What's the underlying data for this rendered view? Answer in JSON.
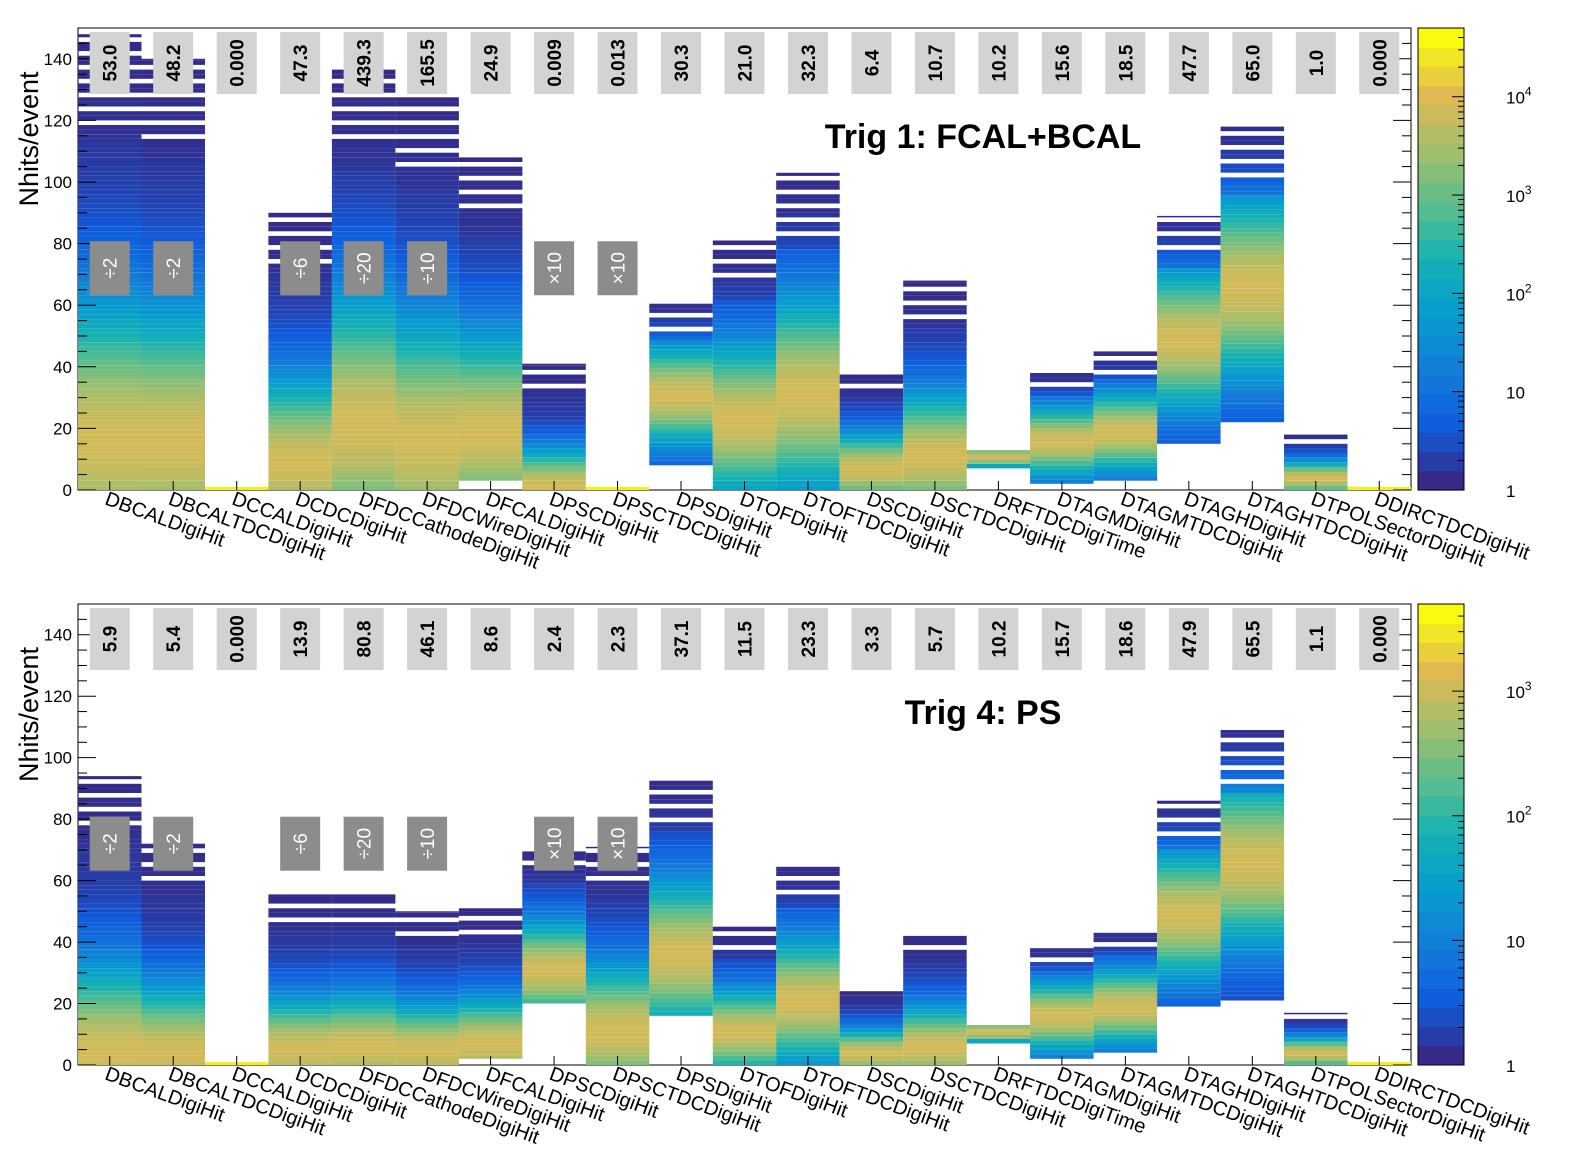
{
  "chart_data": [
    {
      "type": "heatmap",
      "title": "Trig 1: FCAL+BCAL",
      "ylabel": "Nhits/event",
      "ylim": [
        0,
        150
      ],
      "yticks": [
        0,
        20,
        40,
        60,
        80,
        100,
        120,
        140
      ],
      "colorbar": {
        "scale": "log",
        "range": [
          1,
          50000
        ],
        "tick_labels": [
          "1",
          "10",
          "10^2",
          "10^3",
          "10^4"
        ]
      },
      "categories": [
        "DBCALDigiHit",
        "DBCALTDCDigiHit",
        "DCCALDigiHit",
        "DCDCDigiHit",
        "DFDCCathodeDigiHit",
        "DFDCWireDigiHit",
        "DFCALDigiHit",
        "DPSCDigiHit",
        "DPSCTDCDigiHit",
        "DPSDigiHit",
        "DTOFDigiHit",
        "DTOFTDCDigiHit",
        "DSCDigiHit",
        "DSCTDCDigiHit",
        "DRFTDCDigiTime",
        "DTAGMDigiHit",
        "DTAGMTDCDigiHit",
        "DTAGHDigiHit",
        "DTAGHTDCDigiHit",
        "DTPOLSectorDigiHit",
        "DDIRCTDCDigiHit"
      ],
      "mean_labels": [
        "53.0",
        "48.2",
        "0.000",
        "47.3",
        "439.3",
        "165.5",
        "24.9",
        "0.009",
        "0.013",
        "30.3",
        "21.0",
        "32.3",
        "6.4",
        "10.7",
        "10.2",
        "15.6",
        "18.5",
        "47.7",
        "65.0",
        "1.0",
        "0.000"
      ],
      "scale_labels": [
        "÷2",
        "÷2",
        "",
        "÷6",
        "÷20",
        "÷10",
        "",
        "×10",
        "×10",
        "",
        "",
        "",
        "",
        "",
        "",
        "",
        "",
        "",
        "",
        "",
        ""
      ],
      "column_extents": [
        {
          "min": 0,
          "max": 148,
          "peak": 15
        },
        {
          "min": 0,
          "max": 140,
          "peak": 15
        },
        {
          "min": 0,
          "max": 1,
          "peak": 0
        },
        {
          "min": 0,
          "max": 90,
          "peak": 8
        },
        {
          "min": 0,
          "max": 137,
          "peak": 20
        },
        {
          "min": 0,
          "max": 129,
          "peak": 15
        },
        {
          "min": 3,
          "max": 108,
          "peak": 18
        },
        {
          "min": 0,
          "max": 41,
          "peak": 0
        },
        {
          "min": 0,
          "max": 1,
          "peak": 0
        },
        {
          "min": 8,
          "max": 61,
          "peak": 30
        },
        {
          "min": 0,
          "max": 81,
          "peak": 22
        },
        {
          "min": 0,
          "max": 103,
          "peak": 30
        },
        {
          "min": 0,
          "max": 38,
          "peak": 6
        },
        {
          "min": 0,
          "max": 68,
          "peak": 10
        },
        {
          "min": 7,
          "max": 13,
          "peak": 10
        },
        {
          "min": 2,
          "max": 39,
          "peak": 15
        },
        {
          "min": 3,
          "max": 45,
          "peak": 18
        },
        {
          "min": 15,
          "max": 89,
          "peak": 48
        },
        {
          "min": 22,
          "max": 118,
          "peak": 65
        },
        {
          "min": 0,
          "max": 18,
          "peak": 3
        },
        {
          "min": 0,
          "max": 1,
          "peak": 0
        }
      ]
    },
    {
      "type": "heatmap",
      "title": "Trig 4: PS",
      "ylabel": "Nhits/event",
      "ylim": [
        0,
        150
      ],
      "yticks": [
        0,
        20,
        40,
        60,
        80,
        100,
        120,
        140
      ],
      "colorbar": {
        "scale": "log",
        "range": [
          1,
          5000
        ],
        "tick_labels": [
          "1",
          "10",
          "10^2",
          "10^3"
        ]
      },
      "categories": [
        "DBCALDigiHit",
        "DBCALTDCDigiHit",
        "DCCALDigiHit",
        "DCDCDigiHit",
        "DFDCCathodeDigiHit",
        "DFDCWireDigiHit",
        "DFCALDigiHit",
        "DPSCDigiHit",
        "DPSCTDCDigiHit",
        "DPSDigiHit",
        "DTOFDigiHit",
        "DTOFTDCDigiHit",
        "DSCDigiHit",
        "DSCTDCDigiHit",
        "DRFTDCDigiTime",
        "DTAGMDigiHit",
        "DTAGMTDCDigiHit",
        "DTAGHDigiHit",
        "DTAGHTDCDigiHit",
        "DTPOLSectorDigiHit",
        "DDIRCTDCDigiHit"
      ],
      "mean_labels": [
        "5.9",
        "5.4",
        "0.000",
        "13.9",
        "80.8",
        "46.1",
        "8.6",
        "2.4",
        "2.3",
        "37.1",
        "11.5",
        "23.3",
        "3.3",
        "5.7",
        "10.2",
        "15.7",
        "18.6",
        "47.9",
        "65.5",
        "1.1",
        "0.000"
      ],
      "scale_labels": [
        "÷2",
        "÷2",
        "",
        "÷6",
        "÷20",
        "÷10",
        "",
        "×10",
        "×10",
        "",
        "",
        "",
        "",
        "",
        "",
        "",
        "",
        "",
        "",
        "",
        ""
      ],
      "column_extents": [
        {
          "min": 0,
          "max": 94,
          "peak": 3
        },
        {
          "min": 0,
          "max": 72,
          "peak": 3
        },
        {
          "min": 0,
          "max": 1,
          "peak": 0
        },
        {
          "min": 0,
          "max": 56,
          "peak": 4
        },
        {
          "min": 0,
          "max": 56,
          "peak": 5
        },
        {
          "min": 0,
          "max": 50,
          "peak": 4
        },
        {
          "min": 2,
          "max": 51,
          "peak": 6
        },
        {
          "min": 20,
          "max": 71,
          "peak": 30
        },
        {
          "min": 0,
          "max": 71,
          "peak": 10
        },
        {
          "min": 16,
          "max": 94,
          "peak": 35
        },
        {
          "min": 0,
          "max": 45,
          "peak": 10
        },
        {
          "min": 0,
          "max": 66,
          "peak": 20
        },
        {
          "min": 0,
          "max": 25,
          "peak": 3
        },
        {
          "min": 0,
          "max": 43,
          "peak": 5
        },
        {
          "min": 7,
          "max": 13,
          "peak": 10
        },
        {
          "min": 2,
          "max": 39,
          "peak": 15
        },
        {
          "min": 4,
          "max": 44,
          "peak": 18
        },
        {
          "min": 19,
          "max": 86,
          "peak": 48
        },
        {
          "min": 21,
          "max": 109,
          "peak": 65
        },
        {
          "min": 0,
          "max": 17,
          "peak": 3
        },
        {
          "min": 0,
          "max": 1,
          "peak": 0
        }
      ]
    }
  ]
}
